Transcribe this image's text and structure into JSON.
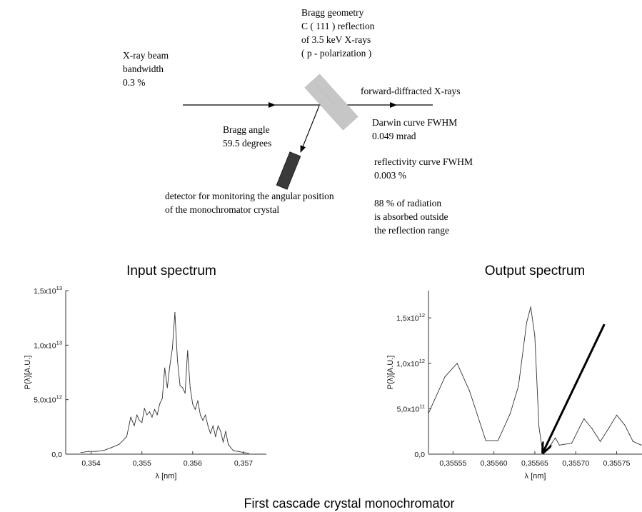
{
  "diagram": {
    "beam_label": [
      "X-ray beam",
      "bandwidth",
      "0.3 %"
    ],
    "geometry_label": [
      "Bragg geometry",
      "C ( 111 ) reflection",
      "of 3.5 keV X-rays",
      "( p - polarization )"
    ],
    "forward_label": "forward-diffracted X-rays",
    "bragg_angle_label": [
      "Bragg angle",
      "59.5 degrees"
    ],
    "darwin_label": [
      "Darwin curve FWHM",
      "0.049 mrad"
    ],
    "reflectivity_label": [
      "reflectivity curve FWHM",
      "0.003 %"
    ],
    "absorbed_label": [
      "88 % of radiation",
      "is absorbed outside",
      "the reflection range"
    ],
    "detector_label": [
      "detector for monitoring the angular position",
      "of the monochromator crystal"
    ],
    "colors": {
      "crystal": "#c6c6c6",
      "detector": "#3a3a3a",
      "line": "#000000"
    }
  },
  "caption": "First cascade crystal monochromator",
  "chart_data": [
    {
      "type": "line",
      "title": "Input spectrum",
      "xlabel": "λ [nm]",
      "ylabel": "P(λ)[A.U.]",
      "xlim": [
        0.3535,
        0.35745
      ],
      "ylim": [
        0,
        15000000000000.0
      ],
      "x_ticks": [
        {
          "value": 0.354,
          "label": "0,354"
        },
        {
          "value": 0.355,
          "label": "0,355"
        },
        {
          "value": 0.356,
          "label": "0,356"
        },
        {
          "value": 0.357,
          "label": "0,357"
        }
      ],
      "y_ticks": [
        {
          "value": 0,
          "label": "0,0",
          "mant": "0,0",
          "exp": ""
        },
        {
          "value": 5000000000000.0,
          "label": "5,0x10^12",
          "mant": "5,0x10",
          "exp": "12"
        },
        {
          "value": 10000000000000.0,
          "label": "1,0x10^13",
          "mant": "1,0x10",
          "exp": "13"
        },
        {
          "value": 15000000000000.0,
          "label": "1,5x10^13",
          "mant": "1,5x10",
          "exp": "13"
        }
      ],
      "series": [
        {
          "x": [
            0.3538,
            0.35395,
            0.3541,
            0.35425,
            0.3544,
            0.35455,
            0.3547,
            0.35478,
            0.35485,
            0.3549,
            0.35495,
            0.355,
            0.35505,
            0.3551,
            0.35515,
            0.3552,
            0.35525,
            0.3553,
            0.35535,
            0.3554,
            0.35545,
            0.3555,
            0.35555,
            0.3556,
            0.35565,
            0.3557,
            0.35575,
            0.3558,
            0.35585,
            0.3559,
            0.35595,
            0.356,
            0.35605,
            0.3561,
            0.35615,
            0.3562,
            0.35625,
            0.3563,
            0.35635,
            0.3564,
            0.35645,
            0.3565,
            0.35655,
            0.3566,
            0.35665,
            0.3567,
            0.3568,
            0.3569,
            0.357,
            0.3571
          ],
          "y": [
            150000000000.0,
            250000000000.0,
            250000000000.0,
            350000000000.0,
            600000000000.0,
            900000000000.0,
            1600000000000.0,
            3400000000000.0,
            2600000000000.0,
            3600000000000.0,
            3100000000000.0,
            2900000000000.0,
            4200000000000.0,
            3600000000000.0,
            3900000000000.0,
            3400000000000.0,
            4100000000000.0,
            3600000000000.0,
            4600000000000.0,
            5100000000000.0,
            7900000000000.0,
            6100000000000.0,
            8100000000000.0,
            9700000000000.0,
            13000000000000.0,
            8600000000000.0,
            6300000000000.0,
            6100000000000.0,
            5600000000000.0,
            9500000000000.0,
            6100000000000.0,
            4600000000000.0,
            4100000000000.0,
            4900000000000.0,
            3600000000000.0,
            3100000000000.0,
            3600000000000.0,
            2600000000000.0,
            1900000000000.0,
            2600000000000.0,
            1600000000000.0,
            2600000000000.0,
            2100000000000.0,
            1100000000000.0,
            2100000000000.0,
            900000000000.0,
            300000000000.0,
            250000000000.0,
            150000000000.0,
            80000000000.0
          ]
        }
      ]
    },
    {
      "type": "line",
      "title": "Output spectrum",
      "xlabel": "λ [nm]",
      "ylabel": "P(λ)[A.U.]",
      "xlim": [
        0.35552,
        0.355781
      ],
      "ylim": [
        0,
        1800000000000.0
      ],
      "x_ticks": [
        {
          "value": 0.35555,
          "label": "0,35555"
        },
        {
          "value": 0.3556,
          "label": "0,35560"
        },
        {
          "value": 0.35565,
          "label": "0,35565"
        },
        {
          "value": 0.3557,
          "label": "0,35570"
        },
        {
          "value": 0.35575,
          "label": "0,35575"
        }
      ],
      "y_ticks": [
        {
          "value": 0,
          "label": "0,0",
          "mant": "0,0",
          "exp": ""
        },
        {
          "value": 500000000000.0,
          "label": "5,0x10^11",
          "mant": "5,0x10",
          "exp": "11"
        },
        {
          "value": 1000000000000.0,
          "label": "1,0x10^12",
          "mant": "1,0x10",
          "exp": "12"
        },
        {
          "value": 1500000000000.0,
          "label": "1,5x10^12",
          "mant": "1,5x10",
          "exp": "12"
        }
      ],
      "series": [
        {
          "x": [
            0.35552,
            0.35554,
            0.355555,
            0.35557,
            0.35559,
            0.355605,
            0.35562,
            0.35563,
            0.35564,
            0.355645,
            0.35565,
            0.355655,
            0.35566,
            0.35567,
            0.355675,
            0.35568,
            0.355695,
            0.35571,
            0.35572,
            0.35573,
            0.35574,
            0.35575,
            0.35576,
            0.35577,
            0.35578
          ],
          "y": [
            450000000000.0,
            850000000000.0,
            1000000000000.0,
            700000000000.0,
            150000000000.0,
            150000000000.0,
            450000000000.0,
            750000000000.0,
            1450000000000.0,
            1620000000000.0,
            1300000000000.0,
            300000000000.0,
            0,
            110000000000.0,
            180000000000.0,
            100000000000.0,
            120000000000.0,
            390000000000.0,
            280000000000.0,
            140000000000.0,
            280000000000.0,
            430000000000.0,
            320000000000.0,
            140000000000.0,
            100000000000.0
          ]
        }
      ],
      "annotation": {
        "type": "arrow",
        "from": [
          0.355735,
          1430000000000.0
        ],
        "to": [
          0.35566,
          20000000000.0
        ]
      }
    }
  ]
}
